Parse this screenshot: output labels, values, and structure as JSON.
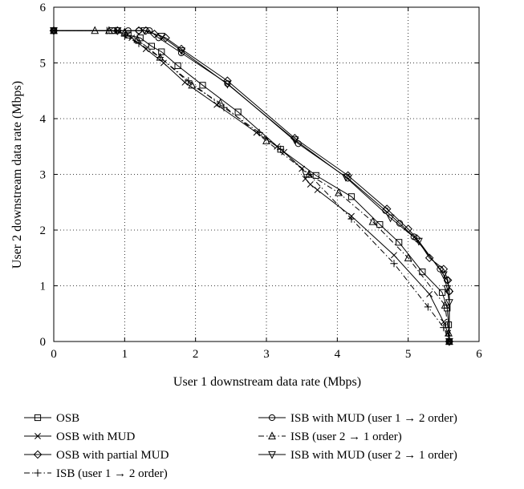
{
  "chart_data": {
    "type": "line",
    "title": "",
    "xlabel": "User 1 downstream data rate (Mbps)",
    "ylabel": "User 2 downstream data rate (Mbps)",
    "xlim": [
      0,
      6
    ],
    "ylim": [
      0,
      6
    ],
    "xticks": [
      "0",
      "1",
      "2",
      "3",
      "4",
      "5",
      "6"
    ],
    "yticks": [
      "0",
      "1",
      "2",
      "3",
      "4",
      "5",
      "6"
    ],
    "grid": true,
    "legend_position": "bottom",
    "series": [
      {
        "name": "OSB",
        "line": "solid",
        "marker": "square",
        "points": [
          [
            0,
            5.58
          ],
          [
            0.82,
            5.58
          ],
          [
            1.05,
            5.5
          ],
          [
            1.22,
            5.45
          ],
          [
            1.38,
            5.3
          ],
          [
            1.52,
            5.2
          ],
          [
            1.75,
            4.95
          ],
          [
            2.1,
            4.6
          ],
          [
            2.6,
            4.12
          ],
          [
            3.2,
            3.45
          ],
          [
            3.7,
            2.98
          ],
          [
            4.2,
            2.6
          ],
          [
            4.6,
            2.1
          ],
          [
            4.87,
            1.78
          ],
          [
            5.2,
            1.25
          ],
          [
            5.48,
            0.88
          ],
          [
            5.55,
            0.6
          ],
          [
            5.57,
            0.3
          ],
          [
            5.58,
            0.0
          ]
        ]
      },
      {
        "name": "OSB with MUD",
        "line": "solid",
        "marker": "x",
        "points": [
          [
            0,
            5.58
          ],
          [
            0.9,
            5.58
          ],
          [
            1.1,
            5.45
          ],
          [
            1.3,
            5.25
          ],
          [
            1.55,
            5.0
          ],
          [
            1.85,
            4.65
          ],
          [
            2.3,
            4.25
          ],
          [
            2.86,
            3.75
          ],
          [
            3.15,
            3.5
          ],
          [
            3.25,
            3.4
          ],
          [
            3.5,
            3.1
          ],
          [
            3.55,
            2.92
          ],
          [
            3.62,
            2.82
          ],
          [
            3.72,
            2.72
          ],
          [
            4.2,
            2.25
          ],
          [
            4.8,
            1.55
          ],
          [
            5.3,
            0.85
          ],
          [
            5.5,
            0.35
          ],
          [
            5.56,
            0.15
          ],
          [
            5.58,
            0.0
          ]
        ]
      },
      {
        "name": "OSB with partial MUD",
        "line": "solid",
        "marker": "diamond",
        "points": [
          [
            0,
            5.58
          ],
          [
            0.9,
            5.58
          ],
          [
            1.2,
            5.58
          ],
          [
            1.3,
            5.58
          ],
          [
            1.42,
            5.52
          ],
          [
            1.58,
            5.45
          ],
          [
            1.8,
            5.25
          ],
          [
            2.45,
            4.68
          ],
          [
            3.4,
            3.65
          ],
          [
            4.15,
            2.98
          ],
          [
            4.7,
            2.38
          ],
          [
            5.0,
            2.02
          ],
          [
            5.12,
            1.85
          ],
          [
            5.3,
            1.5
          ],
          [
            5.5,
            1.3
          ],
          [
            5.56,
            1.1
          ],
          [
            5.58,
            0.9
          ],
          [
            5.58,
            0.0
          ]
        ]
      },
      {
        "name": "ISB (user 1 → 2 order)",
        "line": "dashdot",
        "marker": "plus",
        "points": [
          [
            0,
            5.58
          ],
          [
            0.75,
            5.58
          ],
          [
            0.88,
            5.58
          ],
          [
            1.0,
            5.48
          ],
          [
            1.2,
            5.35
          ],
          [
            1.5,
            5.1
          ],
          [
            1.9,
            4.68
          ],
          [
            2.4,
            4.2
          ],
          [
            2.9,
            3.75
          ],
          [
            3.2,
            3.45
          ],
          [
            3.6,
            3.0
          ],
          [
            4.2,
            2.2
          ],
          [
            4.8,
            1.4
          ],
          [
            5.28,
            0.62
          ],
          [
            5.5,
            0.25
          ],
          [
            5.58,
            0.0
          ]
        ]
      },
      {
        "name": "ISB with MUD (user 1 → 2 order)",
        "line": "solid",
        "marker": "circle",
        "points": [
          [
            0,
            5.58
          ],
          [
            0.85,
            5.58
          ],
          [
            1.05,
            5.58
          ],
          [
            1.2,
            5.58
          ],
          [
            1.35,
            5.58
          ],
          [
            1.48,
            5.45
          ],
          [
            1.8,
            5.18
          ],
          [
            2.45,
            4.63
          ],
          [
            3.45,
            3.55
          ],
          [
            4.15,
            2.93
          ],
          [
            4.68,
            2.35
          ],
          [
            4.88,
            2.12
          ],
          [
            5.08,
            1.88
          ],
          [
            5.45,
            1.3
          ],
          [
            5.55,
            1.1
          ],
          [
            5.58,
            0.9
          ],
          [
            5.58,
            0.0
          ]
        ]
      },
      {
        "name": "ISB (user 2 → 1 order)",
        "line": "dashdot",
        "marker": "triangle-up",
        "points": [
          [
            0,
            5.58
          ],
          [
            0.58,
            5.58
          ],
          [
            0.78,
            5.58
          ],
          [
            1.0,
            5.55
          ],
          [
            1.18,
            5.42
          ],
          [
            1.5,
            5.1
          ],
          [
            1.95,
            4.6
          ],
          [
            2.35,
            4.28
          ],
          [
            3.0,
            3.6
          ],
          [
            3.6,
            3.0
          ],
          [
            4.02,
            2.67
          ],
          [
            4.5,
            2.15
          ],
          [
            5.0,
            1.5
          ],
          [
            5.52,
            0.65
          ],
          [
            5.57,
            0.15
          ],
          [
            5.58,
            0.0
          ]
        ]
      },
      {
        "name": "ISB with MUD (user 2 → 1 order)",
        "line": "solid",
        "marker": "triangle-down",
        "points": [
          [
            0,
            5.58
          ],
          [
            0.9,
            5.58
          ],
          [
            1.28,
            5.58
          ],
          [
            1.52,
            5.48
          ],
          [
            1.8,
            5.22
          ],
          [
            2.45,
            4.62
          ],
          [
            3.4,
            3.62
          ],
          [
            4.12,
            2.95
          ],
          [
            4.75,
            2.22
          ],
          [
            5.15,
            1.8
          ],
          [
            5.5,
            1.2
          ],
          [
            5.55,
            0.95
          ],
          [
            5.58,
            0.7
          ],
          [
            5.58,
            0.0
          ]
        ]
      }
    ]
  }
}
